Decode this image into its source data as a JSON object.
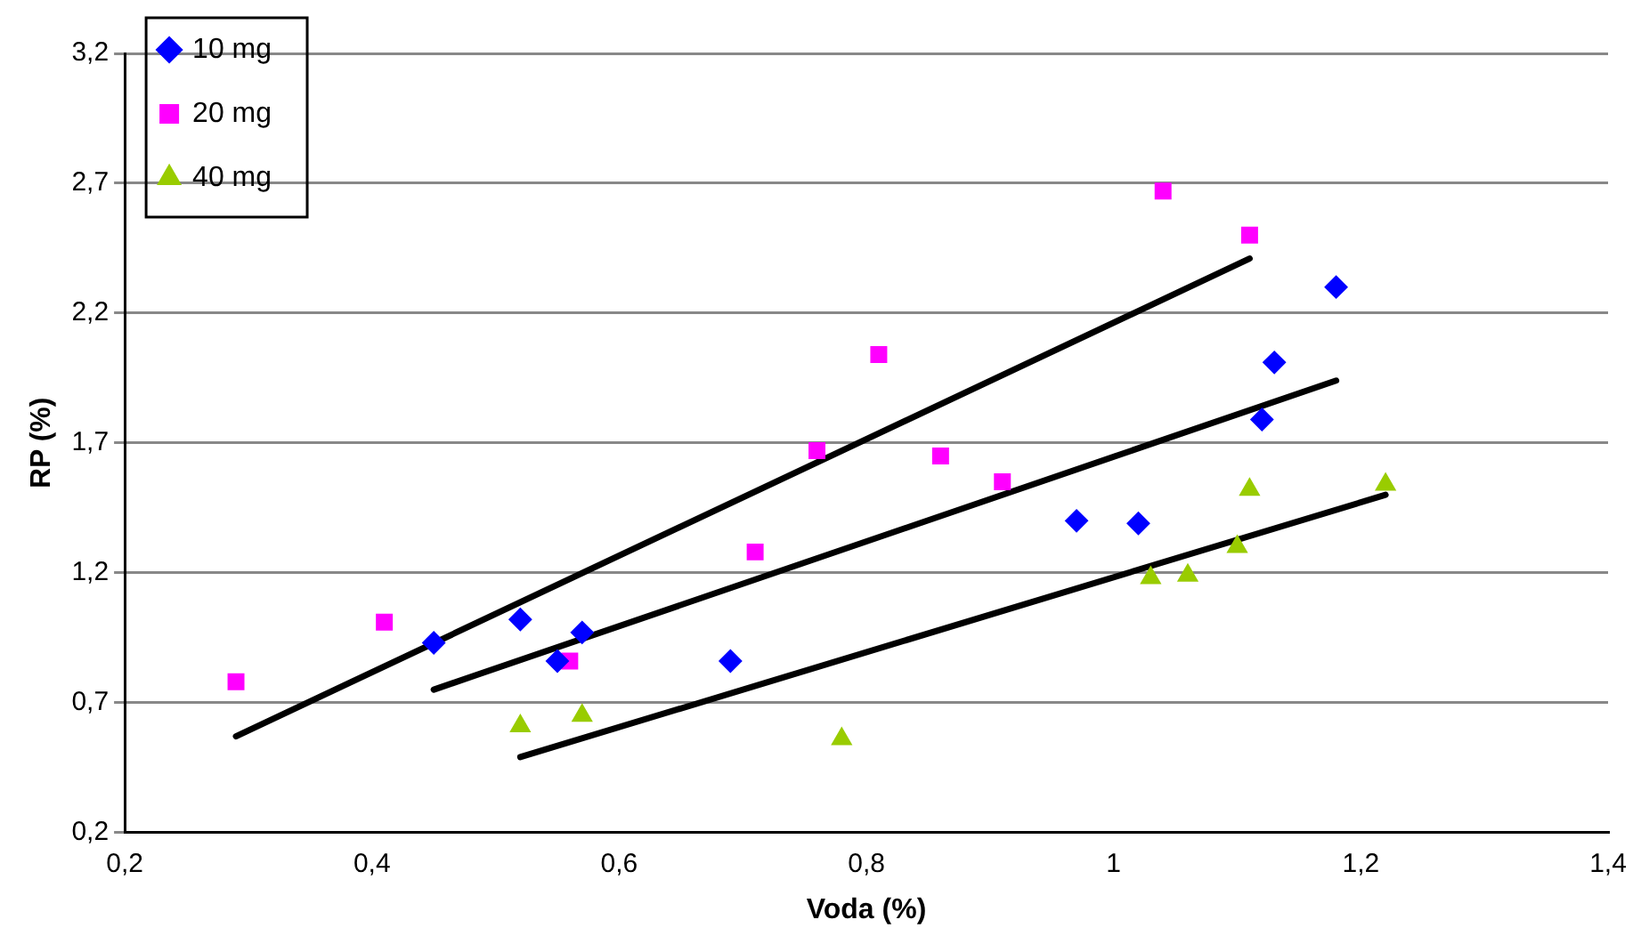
{
  "chart_data": {
    "type": "scatter",
    "xlabel": "Voda (%)",
    "ylabel": "RP (%)",
    "xlim": [
      0.2,
      1.4
    ],
    "xticks": [
      {
        "value": 0.2,
        "label": "0,2"
      },
      {
        "value": 0.4,
        "label": "0,4"
      },
      {
        "value": 0.6,
        "label": "0,6"
      },
      {
        "value": 0.8,
        "label": "0,8"
      },
      1,
      {
        "value": 1.2,
        "label": "1,2"
      },
      {
        "value": 1.4,
        "label": "1,4"
      }
    ],
    "ylim": [
      0.2,
      3.2
    ],
    "yticks": [
      {
        "value": 0.2,
        "label": "0,2"
      },
      {
        "value": 0.7,
        "label": "0,7"
      },
      {
        "value": 1.2,
        "label": "1,2"
      },
      {
        "value": 1.7,
        "label": "1,7"
      },
      {
        "value": 2.2,
        "label": "2,2"
      },
      {
        "value": 2.7,
        "label": "2,7"
      },
      {
        "value": 3.2,
        "label": "3,2"
      }
    ],
    "grid": "y",
    "legend": "top left",
    "series": [
      {
        "name": "10 mg",
        "color": "#0000ff",
        "marker": "diamond",
        "x": [
          0.45,
          0.52,
          0.55,
          0.57,
          0.69,
          0.97,
          1.02,
          1.12,
          1.13,
          1.18
        ],
        "values": [
          0.93,
          1.02,
          0.86,
          0.97,
          0.86,
          1.4,
          1.39,
          1.79,
          2.01,
          2.3
        ]
      },
      {
        "name": "20 mg",
        "color": "#ff00ff",
        "marker": "square",
        "x": [
          0.29,
          0.41,
          0.56,
          0.71,
          0.76,
          0.81,
          0.86,
          0.91,
          1.04,
          1.11
        ],
        "values": [
          0.78,
          1.01,
          0.86,
          1.28,
          1.67,
          2.04,
          1.65,
          1.55,
          2.67,
          2.5
        ]
      },
      {
        "name": "40 mg",
        "color": "#99cc00",
        "marker": "triangle",
        "x": [
          0.52,
          0.57,
          0.78,
          1.03,
          1.06,
          1.1,
          1.11,
          1.22
        ],
        "values": [
          0.61,
          0.65,
          0.56,
          1.18,
          1.19,
          1.3,
          1.52,
          1.54
        ]
      },
      {
        "type": "line",
        "color": "#000000",
        "marker": "none",
        "x": [
          0.29,
          1.11
        ],
        "values": [
          0.57,
          2.41
        ]
      },
      {
        "type": "line",
        "color": "#000000",
        "marker": "none",
        "x": [
          0.45,
          1.18
        ],
        "values": [
          0.75,
          1.94
        ]
      },
      {
        "type": "line",
        "color": "#000000",
        "marker": "none",
        "x": [
          0.52,
          1.22
        ],
        "values": [
          0.49,
          1.5
        ]
      }
    ]
  }
}
